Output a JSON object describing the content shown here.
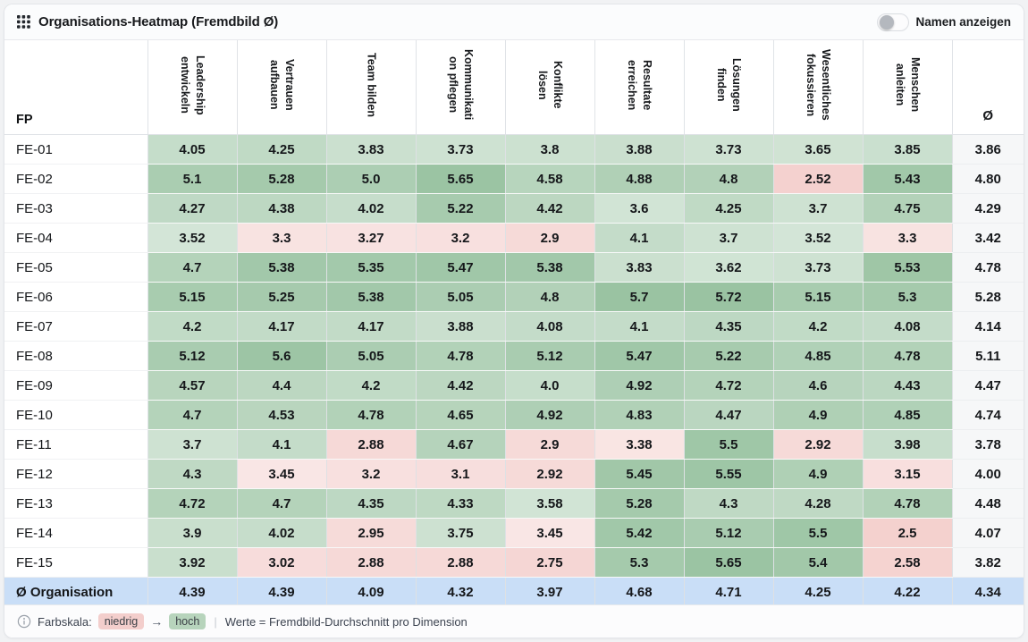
{
  "header": {
    "title": "Organisations-Heatmap (Fremdbild Ø)",
    "toggle_label": "Namen anzeigen",
    "toggle_state": "off"
  },
  "table": {
    "row_header_label": "FP",
    "avg_column_label": "Ø",
    "columns": [
      "Leadership\nentwickeln",
      "Vertrauen\naufbauen",
      "Team bilden",
      "Kommunikati\non pflegen",
      "Konflikte\nlösen",
      "Resultate\nerreichen",
      "Lösungen\nfinden",
      "Wesentliches\nfokussieren",
      "Menschen\nanleiten"
    ],
    "rows": [
      {
        "label": "FE-01",
        "values": [
          "4.05",
          "4.25",
          "3.83",
          "3.73",
          "3.8",
          "3.88",
          "3.73",
          "3.65",
          "3.85"
        ],
        "avg": "3.86"
      },
      {
        "label": "FE-02",
        "values": [
          "5.1",
          "5.28",
          "5.0",
          "5.65",
          "4.58",
          "4.88",
          "4.8",
          "2.52",
          "5.43"
        ],
        "avg": "4.80"
      },
      {
        "label": "FE-03",
        "values": [
          "4.27",
          "4.38",
          "4.02",
          "5.22",
          "4.42",
          "3.6",
          "4.25",
          "3.7",
          "4.75"
        ],
        "avg": "4.29"
      },
      {
        "label": "FE-04",
        "values": [
          "3.52",
          "3.3",
          "3.27",
          "3.2",
          "2.9",
          "4.1",
          "3.7",
          "3.52",
          "3.3"
        ],
        "avg": "3.42"
      },
      {
        "label": "FE-05",
        "values": [
          "4.7",
          "5.38",
          "5.35",
          "5.47",
          "5.38",
          "3.83",
          "3.62",
          "3.73",
          "5.53"
        ],
        "avg": "4.78"
      },
      {
        "label": "FE-06",
        "values": [
          "5.15",
          "5.25",
          "5.38",
          "5.05",
          "4.8",
          "5.7",
          "5.72",
          "5.15",
          "5.3"
        ],
        "avg": "5.28"
      },
      {
        "label": "FE-07",
        "values": [
          "4.2",
          "4.17",
          "4.17",
          "3.88",
          "4.08",
          "4.1",
          "4.35",
          "4.2",
          "4.08"
        ],
        "avg": "4.14"
      },
      {
        "label": "FE-08",
        "values": [
          "5.12",
          "5.6",
          "5.05",
          "4.78",
          "5.12",
          "5.47",
          "5.22",
          "4.85",
          "4.78"
        ],
        "avg": "5.11"
      },
      {
        "label": "FE-09",
        "values": [
          "4.57",
          "4.4",
          "4.2",
          "4.42",
          "4.0",
          "4.92",
          "4.72",
          "4.6",
          "4.43"
        ],
        "avg": "4.47"
      },
      {
        "label": "FE-10",
        "values": [
          "4.7",
          "4.53",
          "4.78",
          "4.65",
          "4.92",
          "4.83",
          "4.47",
          "4.9",
          "4.85"
        ],
        "avg": "4.74"
      },
      {
        "label": "FE-11",
        "values": [
          "3.7",
          "4.1",
          "2.88",
          "4.67",
          "2.9",
          "3.38",
          "5.5",
          "2.92",
          "3.98"
        ],
        "avg": "3.78"
      },
      {
        "label": "FE-12",
        "values": [
          "4.3",
          "3.45",
          "3.2",
          "3.1",
          "2.92",
          "5.45",
          "5.55",
          "4.9",
          "3.15"
        ],
        "avg": "4.00"
      },
      {
        "label": "FE-13",
        "values": [
          "4.72",
          "4.7",
          "4.35",
          "4.33",
          "3.58",
          "5.28",
          "4.3",
          "4.28",
          "4.78"
        ],
        "avg": "4.48"
      },
      {
        "label": "FE-14",
        "values": [
          "3.9",
          "4.02",
          "2.95",
          "3.75",
          "3.45",
          "5.42",
          "5.12",
          "5.5",
          "2.5"
        ],
        "avg": "4.07"
      },
      {
        "label": "FE-15",
        "values": [
          "3.92",
          "3.02",
          "2.88",
          "2.88",
          "2.75",
          "5.3",
          "5.65",
          "5.4",
          "2.58"
        ],
        "avg": "3.82"
      }
    ],
    "total_row": {
      "label": "Ø Organisation",
      "values": [
        "4.39",
        "4.39",
        "4.09",
        "4.32",
        "3.97",
        "4.68",
        "4.71",
        "4.25",
        "4.22"
      ],
      "avg": "4.34"
    }
  },
  "color_scale": {
    "low_color": "#DE736C",
    "high_color": "#5EA06B",
    "threshold": 3.5,
    "min": 2.5,
    "max": 5.72,
    "total_row_color": "#C9DEF7",
    "avg_col_color": "#F6F7F8"
  },
  "footer": {
    "label": "Farbskala:",
    "low_badge": "niedrig",
    "arrow": "→",
    "high_badge": "hoch",
    "separator": "|",
    "note": "Werte = Fremdbild-Durchschnitt pro Dimension"
  },
  "chart_data": {
    "type": "heatmap",
    "title": "Organisations-Heatmap (Fremdbild Ø)",
    "x_categories": [
      "Leadership entwickeln",
      "Vertrauen aufbauen",
      "Team bilden",
      "Kommunikation pflegen",
      "Konflikte lösen",
      "Resultate erreichen",
      "Lösungen finden",
      "Wesentliches fokussieren",
      "Menschen anleiten"
    ],
    "y_categories": [
      "FE-01",
      "FE-02",
      "FE-03",
      "FE-04",
      "FE-05",
      "FE-06",
      "FE-07",
      "FE-08",
      "FE-09",
      "FE-10",
      "FE-11",
      "FE-12",
      "FE-13",
      "FE-14",
      "FE-15",
      "Ø Organisation"
    ],
    "values": [
      [
        4.05,
        4.25,
        3.83,
        3.73,
        3.8,
        3.88,
        3.73,
        3.65,
        3.85
      ],
      [
        5.1,
        5.28,
        5.0,
        5.65,
        4.58,
        4.88,
        4.8,
        2.52,
        5.43
      ],
      [
        4.27,
        4.38,
        4.02,
        5.22,
        4.42,
        3.6,
        4.25,
        3.7,
        4.75
      ],
      [
        3.52,
        3.3,
        3.27,
        3.2,
        2.9,
        4.1,
        3.7,
        3.52,
        3.3
      ],
      [
        4.7,
        5.38,
        5.35,
        5.47,
        5.38,
        3.83,
        3.62,
        3.73,
        5.53
      ],
      [
        5.15,
        5.25,
        5.38,
        5.05,
        4.8,
        5.7,
        5.72,
        5.15,
        5.3
      ],
      [
        4.2,
        4.17,
        4.17,
        3.88,
        4.08,
        4.1,
        4.35,
        4.2,
        4.08
      ],
      [
        5.12,
        5.6,
        5.05,
        4.78,
        5.12,
        5.47,
        5.22,
        4.85,
        4.78
      ],
      [
        4.57,
        4.4,
        4.2,
        4.42,
        4.0,
        4.92,
        4.72,
        4.6,
        4.43
      ],
      [
        4.7,
        4.53,
        4.78,
        4.65,
        4.92,
        4.83,
        4.47,
        4.9,
        4.85
      ],
      [
        3.7,
        4.1,
        2.88,
        4.67,
        2.9,
        3.38,
        5.5,
        2.92,
        3.98
      ],
      [
        4.3,
        3.45,
        3.2,
        3.1,
        2.92,
        5.45,
        5.55,
        4.9,
        3.15
      ],
      [
        4.72,
        4.7,
        4.35,
        4.33,
        3.58,
        5.28,
        4.3,
        4.28,
        4.78
      ],
      [
        3.9,
        4.02,
        2.95,
        3.75,
        3.45,
        5.42,
        5.12,
        5.5,
        2.5
      ],
      [
        3.92,
        3.02,
        2.88,
        2.88,
        2.75,
        5.3,
        5.65,
        5.4,
        2.58
      ],
      [
        4.39,
        4.39,
        4.09,
        4.32,
        3.97,
        4.68,
        4.71,
        4.25,
        4.22
      ]
    ],
    "row_averages": [
      3.86,
      4.8,
      4.29,
      3.42,
      4.78,
      5.28,
      4.14,
      5.11,
      4.47,
      4.74,
      3.78,
      4.0,
      4.48,
      4.07,
      3.82,
      4.34
    ],
    "colorbar": {
      "low_label": "niedrig",
      "high_label": "hoch"
    }
  }
}
